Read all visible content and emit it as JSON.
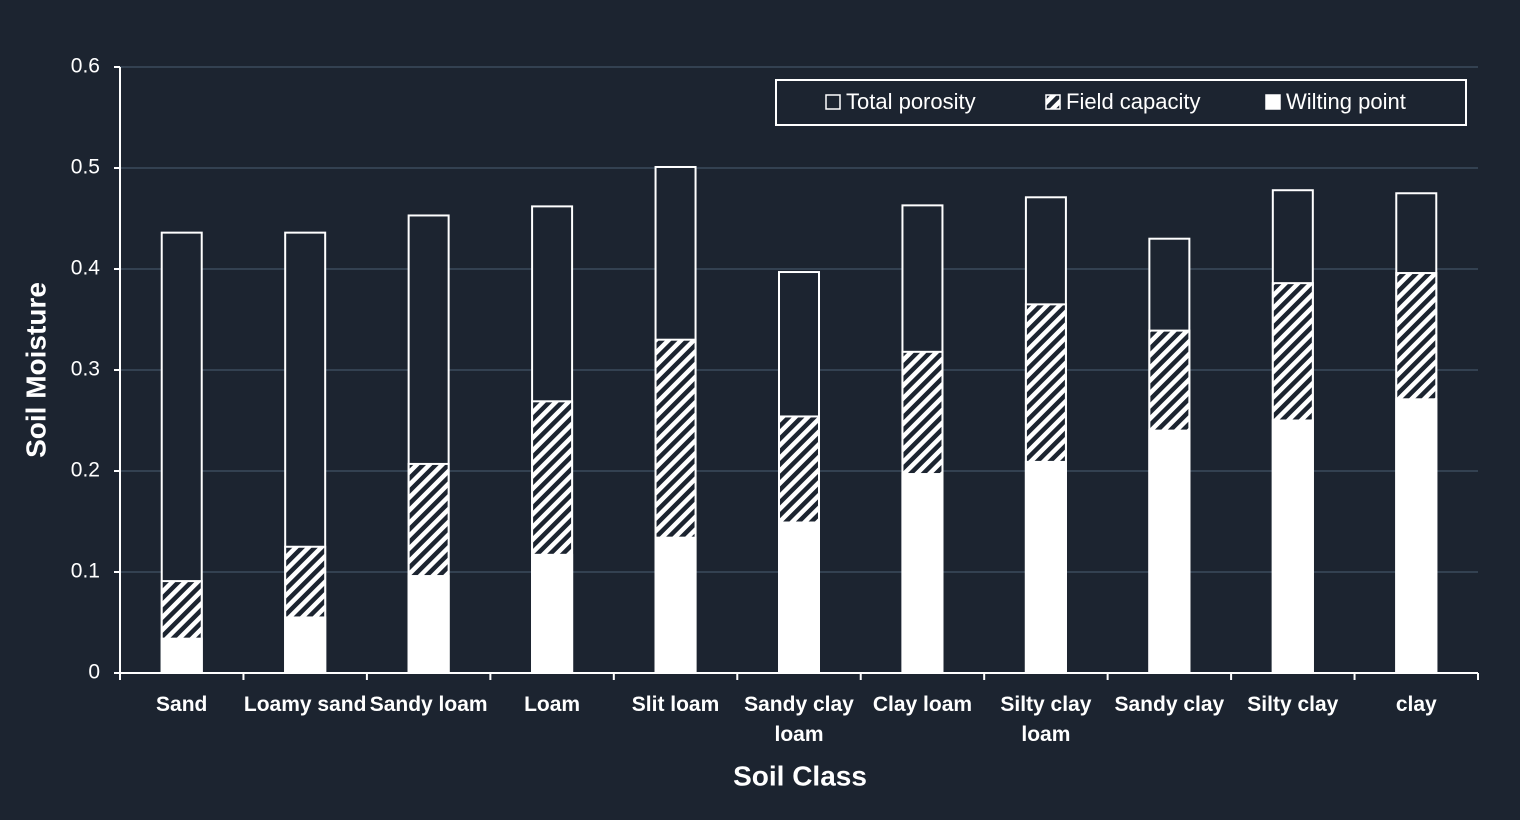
{
  "chart_data": {
    "type": "bar",
    "bar_mode": "overlap",
    "x_label": "Soil Class",
    "y_label": "Soil Moisture",
    "categories": [
      "Sand",
      "Loamy sand",
      "Sandy loam",
      "Loam",
      "Slit loam",
      "Sandy clay loam",
      "Clay loam",
      "Silty clay loam",
      "Sandy clay",
      "Silty clay",
      "clay"
    ],
    "series": [
      {
        "name": "Total porosity",
        "color": "#ffffff",
        "pattern": "outline",
        "values": [
          0.436,
          0.436,
          0.453,
          0.462,
          0.501,
          0.397,
          0.463,
          0.471,
          0.43,
          0.478,
          0.475
        ]
      },
      {
        "name": "Field capacity",
        "color": "#ffffff",
        "pattern": "hatch",
        "values": [
          0.091,
          0.125,
          0.207,
          0.269,
          0.33,
          0.254,
          0.318,
          0.365,
          0.339,
          0.386,
          0.396
        ]
      },
      {
        "name": "Wilting point",
        "color": "#ffffff",
        "pattern": "solid",
        "values": [
          0.034,
          0.055,
          0.096,
          0.117,
          0.134,
          0.149,
          0.197,
          0.209,
          0.24,
          0.25,
          0.271
        ]
      }
    ],
    "ylim": [
      0,
      0.6
    ],
    "yticks": [
      0,
      0.1,
      0.2,
      0.3,
      0.4,
      0.5,
      0.6
    ],
    "grid": true,
    "legend": "top-right"
  }
}
